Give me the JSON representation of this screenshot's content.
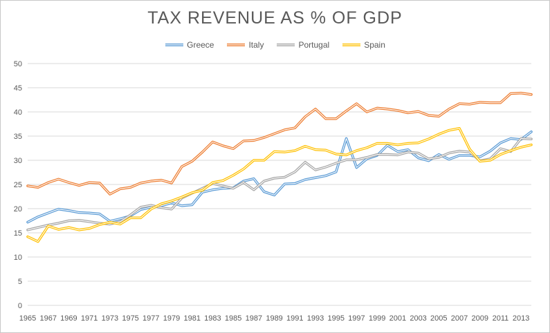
{
  "chart_data": {
    "type": "line",
    "title": "TAX REVENUE AS % OF GDP",
    "xlabel": "",
    "ylabel": "",
    "ylim": [
      0,
      50
    ],
    "yticks": [
      0,
      5,
      10,
      15,
      20,
      25,
      30,
      35,
      40,
      45,
      50
    ],
    "xtick_labels": [
      "1965",
      "1967",
      "1969",
      "1971",
      "1973",
      "1975",
      "1977",
      "1979",
      "1981",
      "1983",
      "1985",
      "1987",
      "1989",
      "1991",
      "1993",
      "1995",
      "1997",
      "1999",
      "2001",
      "2003",
      "2005",
      "2007",
      "2009",
      "2011",
      "2013"
    ],
    "x": [
      1965,
      1966,
      1967,
      1968,
      1969,
      1970,
      1971,
      1972,
      1973,
      1974,
      1975,
      1976,
      1977,
      1978,
      1979,
      1980,
      1981,
      1982,
      1983,
      1984,
      1985,
      1986,
      1987,
      1988,
      1989,
      1990,
      1991,
      1992,
      1993,
      1994,
      1995,
      1996,
      1997,
      1998,
      1999,
      2000,
      2001,
      2002,
      2003,
      2004,
      2005,
      2006,
      2007,
      2008,
      2009,
      2010,
      2011,
      2012,
      2013,
      2014
    ],
    "grid": true,
    "legend_position": "top",
    "series": [
      {
        "name": "Greece",
        "color": "#5b9bd5",
        "values": [
          17.2,
          18.3,
          19.1,
          19.9,
          19.6,
          19.2,
          19.1,
          18.9,
          17.4,
          17.9,
          18.5,
          19.8,
          20.3,
          20.6,
          21.2,
          20.6,
          20.8,
          23.4,
          23.9,
          24.2,
          24.3,
          25.7,
          26.2,
          23.5,
          22.8,
          25.1,
          25.2,
          26.0,
          26.4,
          26.8,
          27.6,
          34.5,
          28.5,
          30.3,
          31.0,
          33.1,
          31.8,
          32.2,
          30.5,
          29.9,
          31.2,
          30.2,
          31.0,
          31.0,
          30.7,
          31.9,
          33.6,
          34.5,
          34.3,
          35.9
        ]
      },
      {
        "name": "Italy",
        "color": "#ed7d31",
        "values": [
          24.7,
          24.4,
          25.4,
          26.1,
          25.4,
          24.8,
          25.4,
          25.3,
          23.0,
          24.1,
          24.4,
          25.3,
          25.7,
          25.9,
          25.3,
          28.7,
          29.8,
          31.7,
          33.8,
          33.0,
          32.4,
          34.0,
          34.1,
          34.7,
          35.5,
          36.3,
          36.7,
          39.0,
          40.6,
          38.6,
          38.6,
          40.2,
          41.7,
          40.0,
          40.8,
          40.6,
          40.3,
          39.8,
          40.1,
          39.3,
          39.1,
          40.6,
          41.7,
          41.6,
          42.0,
          41.9,
          41.9,
          43.8,
          43.9,
          43.6
        ]
      },
      {
        "name": "Portugal",
        "color": "#a5a5a5",
        "values": [
          15.6,
          16.1,
          16.6,
          17.0,
          17.5,
          17.6,
          17.3,
          17.0,
          16.8,
          17.3,
          18.7,
          20.3,
          20.7,
          20.2,
          19.9,
          22.2,
          23.2,
          24.2,
          25.2,
          24.7,
          24.2,
          25.4,
          23.9,
          25.7,
          26.3,
          26.5,
          27.6,
          29.6,
          28.0,
          28.6,
          29.4,
          30.1,
          30.1,
          30.6,
          31.2,
          31.2,
          31.1,
          31.7,
          31.5,
          30.3,
          30.6,
          31.5,
          31.9,
          31.7,
          29.9,
          30.3,
          32.4,
          31.8,
          34.5,
          34.4
        ]
      },
      {
        "name": "Spain",
        "color": "#ffc000",
        "values": [
          14.2,
          13.2,
          16.4,
          15.7,
          16.1,
          15.6,
          15.9,
          16.7,
          17.2,
          16.8,
          18.1,
          18.1,
          19.9,
          21.0,
          21.6,
          22.4,
          23.3,
          23.8,
          25.4,
          25.8,
          26.9,
          28.2,
          30.0,
          30.0,
          31.8,
          31.7,
          32.0,
          32.9,
          32.2,
          32.1,
          31.3,
          31.1,
          32.0,
          32.6,
          33.5,
          33.5,
          33.2,
          33.5,
          33.6,
          34.4,
          35.4,
          36.2,
          36.6,
          32.3,
          29.8,
          30.0,
          31.2,
          32.0,
          32.7,
          33.2
        ]
      }
    ]
  }
}
